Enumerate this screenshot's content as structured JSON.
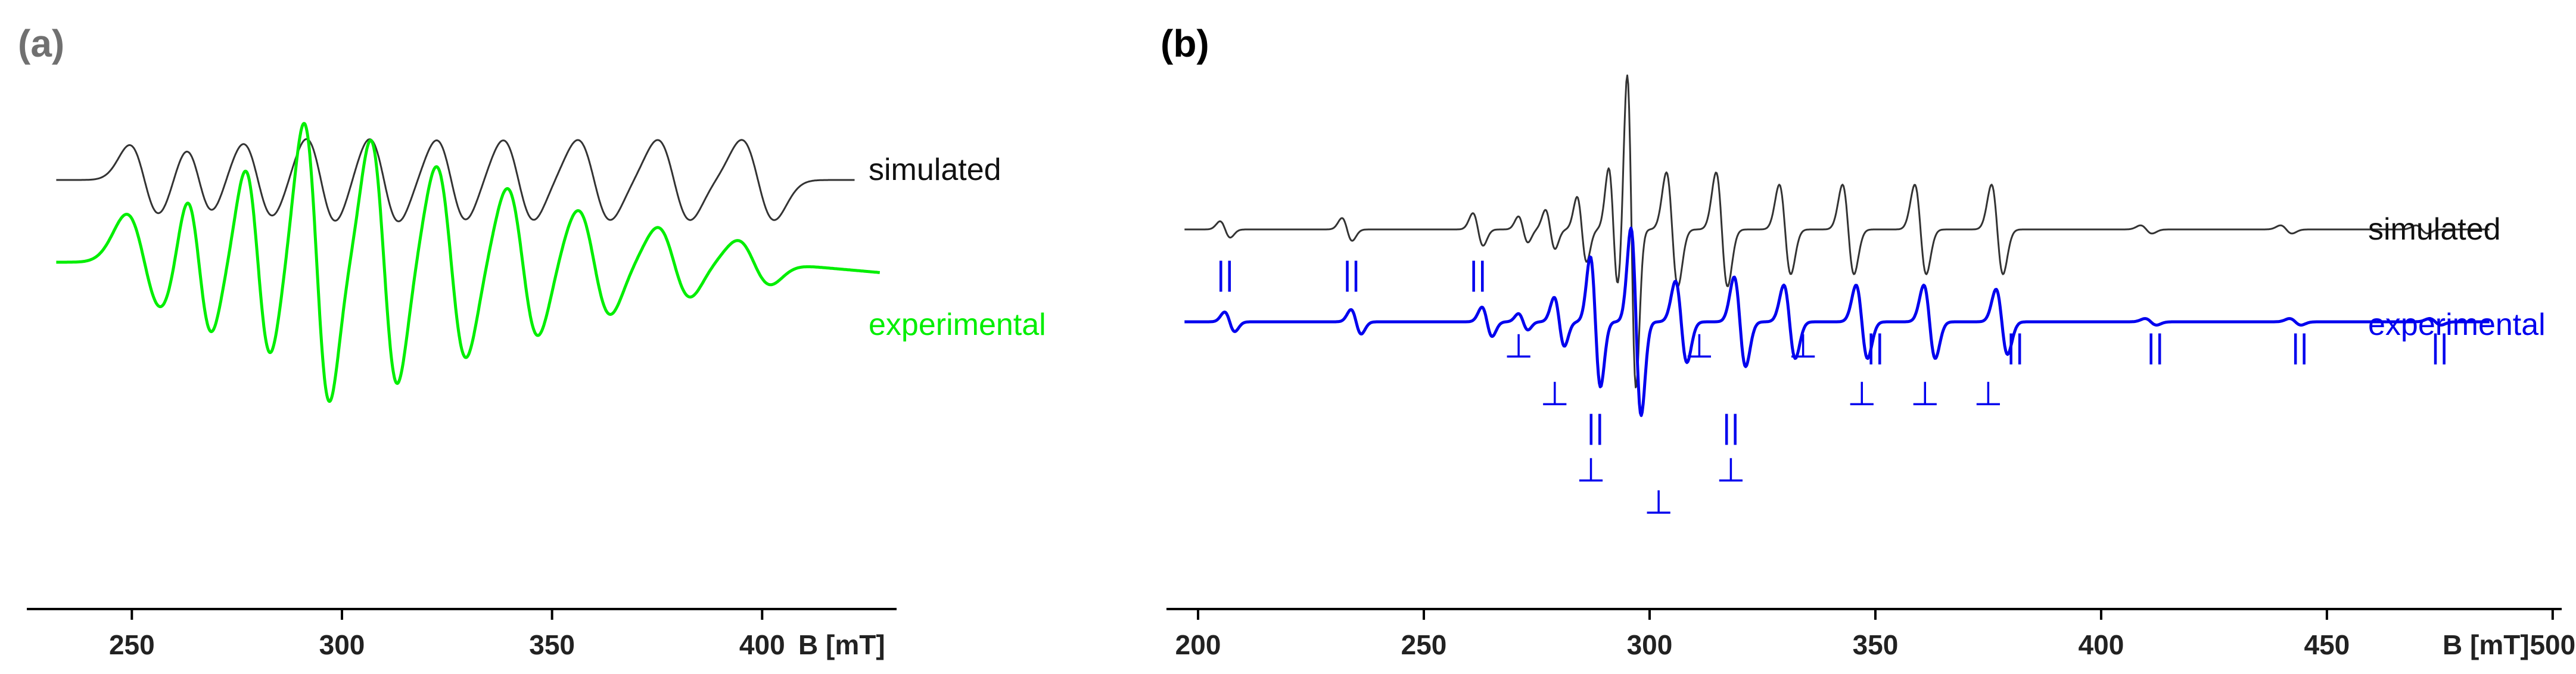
{
  "colors": {
    "simulated": "#333333",
    "experimental_a": "#00ee00",
    "experimental_b": "#0000ee",
    "panel_label_a": "#707070",
    "panel_label_b": "#000000",
    "axis": "#000000"
  },
  "chart_data": [
    {
      "type": "line",
      "panel_label": "(a)",
      "xlabel": "B [mT]",
      "xlim": [
        225,
        432
      ],
      "x_ticks": [
        250,
        300,
        350,
        400
      ],
      "yaxis": "none",
      "legend": "inline labels at right end of traces",
      "series": [
        {
          "name": "simulated",
          "color": "#333333",
          "baseline": 0.6,
          "lines": [
            {
              "x": 253,
              "amp": 0.4,
              "w": 5.0
            },
            {
              "x": 266,
              "amp": 0.36,
              "w": 4.5
            },
            {
              "x": 280,
              "amp": 0.42,
              "w": 5.0
            },
            {
              "x": 295,
              "amp": 0.48,
              "w": 5.0
            },
            {
              "x": 310,
              "amp": 0.48,
              "w": 5.0
            },
            {
              "x": 326,
              "amp": 0.46,
              "w": 5.0
            },
            {
              "x": 342,
              "amp": 0.46,
              "w": 5.2
            },
            {
              "x": 360,
              "amp": 0.46,
              "w": 5.5
            },
            {
              "x": 379,
              "amp": 0.46,
              "w": 5.5
            },
            {
              "x": 399,
              "amp": 0.46,
              "w": 5.5
            }
          ]
        },
        {
          "name": "experimental",
          "color": "#00ee00",
          "baseline": -0.35,
          "lines": [
            {
              "x": 253,
              "amp": 0.55,
              "w": 6.0
            },
            {
              "x": 266,
              "amp": 0.8,
              "w": 4.2
            },
            {
              "x": 280,
              "amp": 1.05,
              "w": 4.2
            },
            {
              "x": 294,
              "amp": 1.6,
              "w": 4.3
            },
            {
              "x": 310,
              "amp": 1.4,
              "w": 4.5
            },
            {
              "x": 326,
              "amp": 1.1,
              "w": 5.0
            },
            {
              "x": 343,
              "amp": 0.85,
              "w": 5.2
            },
            {
              "x": 360,
              "amp": 0.6,
              "w": 5.5
            },
            {
              "x": 379,
              "amp": 0.4,
              "w": 5.5
            },
            {
              "x": 398,
              "amp": 0.25,
              "w": 5.5
            }
          ]
        }
      ]
    },
    {
      "type": "line",
      "panel_label": "(b)",
      "xlabel": "B [mT]",
      "xlim": [
        193,
        502
      ],
      "x_ticks": [
        200,
        250,
        300,
        350,
        400,
        450,
        500
      ],
      "yaxis": "none",
      "legend": "inline labels at right end of traces",
      "series": [
        {
          "name": "simulated",
          "color": "#333333",
          "baseline": 0.6,
          "lines": [
            {
              "x": 206,
              "amp": 0.1,
              "w": 1.6
            },
            {
              "x": 233,
              "amp": 0.14,
              "w": 1.6
            },
            {
              "x": 262,
              "amp": 0.2,
              "w": 1.6
            },
            {
              "x": 272,
              "amp": 0.16,
              "w": 1.5
            },
            {
              "x": 278,
              "amp": 0.24,
              "w": 1.5
            },
            {
              "x": 285,
              "amp": 0.4,
              "w": 1.5
            },
            {
              "x": 292,
              "amp": 0.75,
              "w": 1.5
            },
            {
              "x": 296,
              "amp": 1.95,
              "w": 1.4
            },
            {
              "x": 305,
              "amp": 0.7,
              "w": 1.8
            },
            {
              "x": 316,
              "amp": 0.7,
              "w": 1.8
            },
            {
              "x": 330,
              "amp": 0.55,
              "w": 1.8
            },
            {
              "x": 344,
              "amp": 0.55,
              "w": 1.8
            },
            {
              "x": 360,
              "amp": 0.55,
              "w": 1.8
            },
            {
              "x": 377,
              "amp": 0.55,
              "w": 1.8
            },
            {
              "x": 410,
              "amp": 0.05,
              "w": 1.8
            },
            {
              "x": 441,
              "amp": 0.05,
              "w": 1.8
            },
            {
              "x": 471,
              "amp": 0.05,
              "w": 1.8
            }
          ]
        },
        {
          "name": "experimental",
          "color": "#0000ee",
          "baseline": -0.1,
          "lines": [
            {
              "x": 207,
              "amp": 0.12,
              "w": 1.6
            },
            {
              "x": 235,
              "amp": 0.15,
              "w": 1.6
            },
            {
              "x": 264,
              "amp": 0.18,
              "w": 1.6
            },
            {
              "x": 272,
              "amp": 0.1,
              "w": 1.5
            },
            {
              "x": 280,
              "amp": 0.3,
              "w": 1.6
            },
            {
              "x": 288,
              "amp": 0.8,
              "w": 1.6
            },
            {
              "x": 297,
              "amp": 1.15,
              "w": 1.6
            },
            {
              "x": 307,
              "amp": 0.5,
              "w": 1.8
            },
            {
              "x": 320,
              "amp": 0.55,
              "w": 1.8
            },
            {
              "x": 331,
              "amp": 0.45,
              "w": 1.8
            },
            {
              "x": 347,
              "amp": 0.45,
              "w": 1.8
            },
            {
              "x": 362,
              "amp": 0.45,
              "w": 1.8
            },
            {
              "x": 378,
              "amp": 0.4,
              "w": 1.8
            },
            {
              "x": 411,
              "amp": 0.04,
              "w": 1.8
            },
            {
              "x": 443,
              "amp": 0.04,
              "w": 1.8
            },
            {
              "x": 474,
              "amp": 0.04,
              "w": 1.8
            }
          ]
        }
      ],
      "annotations": {
        "parallel_symbol": "||",
        "perpendicular_symbol": "⊥",
        "parallel_markers": [
          {
            "x": 206,
            "level": "above"
          },
          {
            "x": 234,
            "level": "above"
          },
          {
            "x": 262,
            "level": "above"
          },
          {
            "x": 288,
            "level": "low"
          },
          {
            "x": 318,
            "level": "low"
          },
          {
            "x": 350,
            "level": "mid"
          },
          {
            "x": 381,
            "level": "mid"
          },
          {
            "x": 412,
            "level": "mid"
          },
          {
            "x": 444,
            "level": "mid"
          },
          {
            "x": 475,
            "level": "mid"
          }
        ],
        "perpendicular_markers": [
          {
            "x": 271,
            "level": "mid"
          },
          {
            "x": 279,
            "level": "mid2"
          },
          {
            "x": 287,
            "level": "lowest"
          },
          {
            "x": 302,
            "level": "lowest2"
          },
          {
            "x": 311,
            "level": "mid"
          },
          {
            "x": 318,
            "level": "lowest"
          },
          {
            "x": 334,
            "level": "mid"
          },
          {
            "x": 347,
            "level": "mid2"
          },
          {
            "x": 361,
            "level": "mid2"
          },
          {
            "x": 375,
            "level": "mid2"
          }
        ]
      }
    }
  ]
}
